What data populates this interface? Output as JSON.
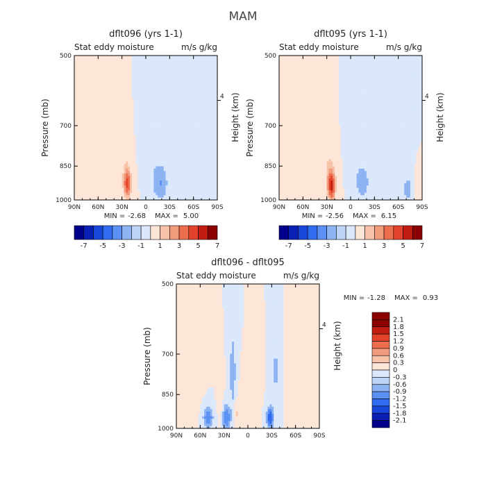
{
  "figure_title": "MAM",
  "chart_data": [
    {
      "type": "heatmap",
      "title": "dflt096 (yrs 1-1)",
      "subtitle_left": "Stat eddy moisture",
      "subtitle_right": "m/s g/kg",
      "xlabel": "",
      "ylabel": "Pressure (mb)",
      "ylabel_right": "Height (km)",
      "x_ticks": [
        "90N",
        "60N",
        "30N",
        "0",
        "30S",
        "60S",
        "90S"
      ],
      "y_ticks": [
        "500",
        "700",
        "850",
        "1000"
      ],
      "y_right_ticks": [
        "4"
      ],
      "xlim": [
        90,
        -90
      ],
      "ylim": [
        1000,
        500
      ],
      "y_scale": "log",
      "min_label": "MIN =",
      "min": "-2.68",
      "max_label": "MAX =",
      "max": "5.00",
      "levels": [
        -7,
        -6,
        -5,
        -4,
        -3,
        -2,
        -1,
        0,
        1,
        2,
        3,
        4,
        5,
        6,
        7
      ],
      "colorbar_labels": [
        "-7",
        "-5",
        "-3",
        "-1",
        "1",
        "3",
        "5",
        "7"
      ],
      "colorbar_orientation": "horizontal",
      "features": [
        {
          "x": -3,
          "p": 760,
          "w": 14,
          "h": 0.15,
          "v": -0.7
        },
        {
          "x": -18,
          "p": 920,
          "w": 10,
          "h": 0.09,
          "v": -2.0
        },
        {
          "x": -50,
          "p": 950,
          "w": 6,
          "h": 0.05,
          "v": -0.9
        },
        {
          "x": -75,
          "p": 960,
          "w": 6,
          "h": 0.05,
          "v": -0.9
        },
        {
          "x": 23,
          "p": 930,
          "w": 5,
          "h": 0.07,
          "v": 4.5
        },
        {
          "x": 25,
          "p": 840,
          "w": 9,
          "h": 0.16,
          "v": 1.6
        },
        {
          "x": 48,
          "p": 880,
          "w": 14,
          "h": 0.12,
          "v": 0.7
        }
      ]
    },
    {
      "type": "heatmap",
      "title": "dflt095 (yrs 1-1)",
      "subtitle_left": "Stat eddy moisture",
      "subtitle_right": "m/s g/kg",
      "xlabel": "",
      "ylabel": "Pressure (mb)",
      "ylabel_right": "Height (km)",
      "x_ticks": [
        "90N",
        "60N",
        "30N",
        "0",
        "30S",
        "60S",
        "90S"
      ],
      "y_ticks": [
        "500",
        "700",
        "850",
        "1000"
      ],
      "y_right_ticks": [
        "4"
      ],
      "xlim": [
        90,
        -90
      ],
      "ylim": [
        1000,
        500
      ],
      "y_scale": "log",
      "min_label": "MIN =",
      "min": "-2.56",
      "max_label": "MAX =",
      "max": "6.15",
      "levels": [
        -7,
        -6,
        -5,
        -4,
        -3,
        -2,
        -1,
        0,
        1,
        2,
        3,
        4,
        5,
        6,
        7
      ],
      "colorbar_labels": [
        "-7",
        "-5",
        "-3",
        "-1",
        "1",
        "3",
        "5",
        "7"
      ],
      "colorbar_orientation": "horizontal",
      "features": [
        {
          "x": -3,
          "p": 760,
          "w": 14,
          "h": 0.15,
          "v": -0.6
        },
        {
          "x": -15,
          "p": 920,
          "w": 10,
          "h": 0.09,
          "v": -1.5
        },
        {
          "x": -72,
          "p": 950,
          "w": 6,
          "h": 0.06,
          "v": -1.6
        },
        {
          "x": 24,
          "p": 935,
          "w": 5,
          "h": 0.07,
          "v": 5.5
        },
        {
          "x": 27,
          "p": 840,
          "w": 10,
          "h": 0.17,
          "v": 1.9
        },
        {
          "x": 55,
          "p": 880,
          "w": 14,
          "h": 0.12,
          "v": 0.8
        },
        {
          "x": -84,
          "p": 950,
          "w": 4,
          "h": 0.05,
          "v": 1.5
        }
      ]
    },
    {
      "type": "heatmap",
      "title": "dflt096 - dflt095",
      "subtitle_left": "Stat eddy moisture",
      "subtitle_right": "m/s g/kg",
      "xlabel": "",
      "ylabel": "Pressure (mb)",
      "ylabel_right": "Height (km)",
      "x_ticks": [
        "90N",
        "60N",
        "30N",
        "0",
        "30S",
        "60S",
        "90S"
      ],
      "y_ticks": [
        "500",
        "700",
        "850",
        "1000"
      ],
      "y_right_ticks": [
        "4"
      ],
      "xlim": [
        90,
        -90
      ],
      "ylim": [
        1000,
        500
      ],
      "y_scale": "log",
      "min_label": "MIN =",
      "min": "-1.28",
      "max_label": "MAX =",
      "max": "0.93",
      "levels": [
        -2.1,
        -1.8,
        -1.5,
        -1.2,
        -0.9,
        -0.6,
        -0.3,
        0,
        0.3,
        0.6,
        0.9,
        1.2,
        1.5,
        1.8,
        2.1
      ],
      "colorbar_labels": [
        "2.1",
        "1.8",
        "1.5",
        "1.2",
        "0.9",
        "0.6",
        "0.3",
        "0",
        "-0.3",
        "-0.6",
        "-0.9",
        "-1.2",
        "-1.5",
        "-1.8",
        "-2.1"
      ],
      "colorbar_orientation": "vertical",
      "features": [
        {
          "x": 50,
          "p": 950,
          "w": 6,
          "h": 0.05,
          "v": -0.9
        },
        {
          "x": 27,
          "p": 950,
          "w": 5,
          "h": 0.06,
          "v": -0.9
        },
        {
          "x": -28,
          "p": 950,
          "w": 4,
          "h": 0.05,
          "v": -1.2
        },
        {
          "x": 19,
          "p": 760,
          "w": 4,
          "h": 0.2,
          "v": -0.5
        },
        {
          "x": 35,
          "p": 820,
          "w": 3,
          "h": 0.12,
          "v": 0.4
        },
        {
          "x": 15,
          "p": 930,
          "w": 3,
          "h": 0.05,
          "v": 0.8
        },
        {
          "x": 5,
          "p": 880,
          "w": 4,
          "h": 0.1,
          "v": 0.4
        },
        {
          "x": -8,
          "p": 800,
          "w": 5,
          "h": 0.15,
          "v": 0.35
        },
        {
          "x": -55,
          "p": 800,
          "w": 4,
          "h": 0.2,
          "v": 0.35
        },
        {
          "x": 75,
          "p": 820,
          "w": 10,
          "h": 0.15,
          "v": 0.35
        },
        {
          "x": -35,
          "p": 760,
          "w": 4,
          "h": 0.25,
          "v": -0.35
        }
      ]
    }
  ],
  "palettes": {
    "main": [
      "#00008b",
      "#0a1fb4",
      "#1846d8",
      "#2f6cf0",
      "#5c90f4",
      "#8db3f2",
      "#bcd4f5",
      "#dbe8fb",
      "#fde6d8",
      "#f7c2a8",
      "#f29b7c",
      "#ec6e4e",
      "#e2432a",
      "#c31c10",
      "#8b0000"
    ],
    "diff": [
      "#00008b",
      "#0a1fb4",
      "#1846d8",
      "#2f6cf0",
      "#5c90f4",
      "#8db3f2",
      "#bcd4f5",
      "#dbe8fb",
      "#fde6d8",
      "#f7c2a8",
      "#f29b7c",
      "#ec6e4e",
      "#e2432a",
      "#c31c10",
      "#8b0000",
      "#8b0000"
    ]
  }
}
